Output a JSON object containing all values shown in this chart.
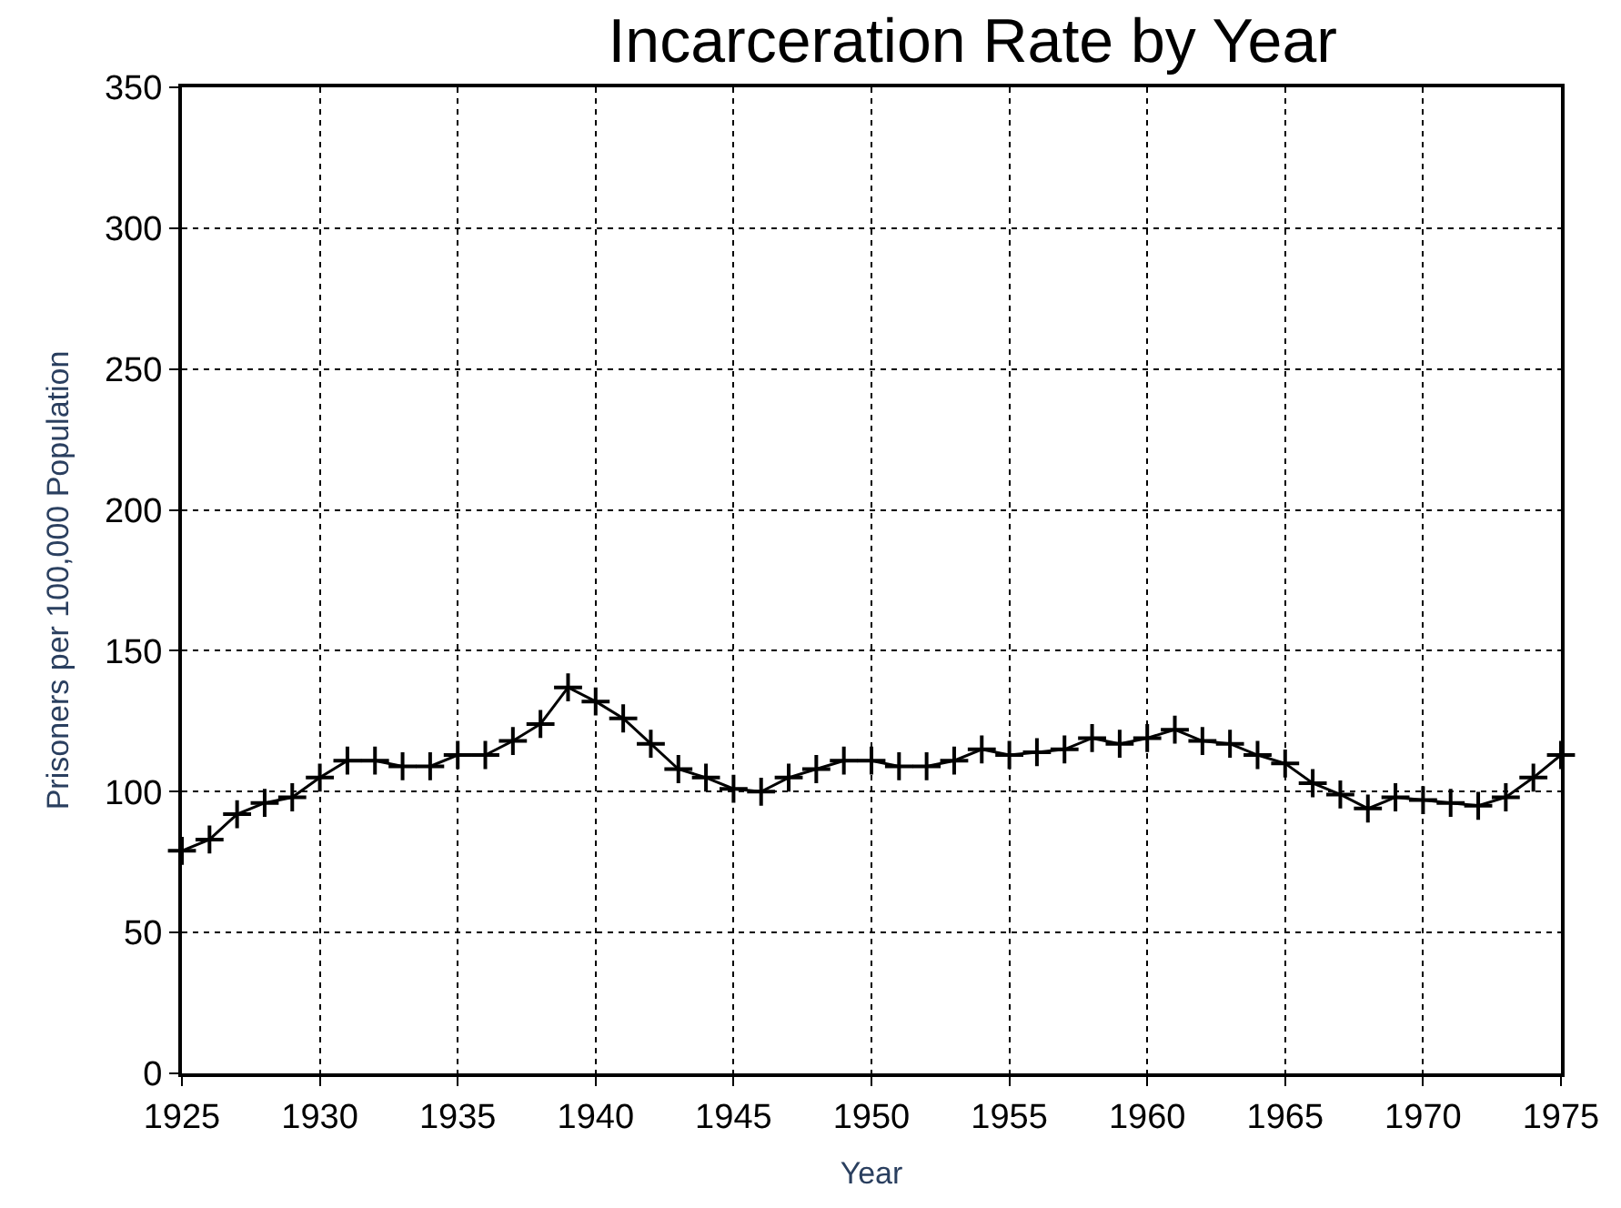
{
  "chart_data": {
    "type": "line",
    "title": "Incarceration Rate by Year",
    "xlabel": "Year",
    "ylabel": "Prisoners per 100,000 Population",
    "x": [
      1925,
      1926,
      1927,
      1928,
      1929,
      1930,
      1931,
      1932,
      1933,
      1934,
      1935,
      1936,
      1937,
      1938,
      1939,
      1940,
      1941,
      1942,
      1943,
      1944,
      1945,
      1946,
      1947,
      1948,
      1949,
      1950,
      1951,
      1952,
      1953,
      1954,
      1955,
      1956,
      1957,
      1958,
      1959,
      1960,
      1961,
      1962,
      1963,
      1964,
      1965,
      1966,
      1967,
      1968,
      1969,
      1970,
      1971,
      1972,
      1973,
      1974,
      1975
    ],
    "series": [
      {
        "color": "#000000",
        "values": [
          79,
          83,
          92,
          96,
          98,
          105,
          111,
          111,
          109,
          109,
          113,
          113,
          118,
          124,
          137,
          132,
          126,
          117,
          108,
          105,
          101,
          100,
          105,
          108,
          111,
          111,
          109,
          109,
          111,
          115,
          113,
          114,
          115,
          119,
          117,
          119,
          122,
          118,
          117,
          113,
          110,
          103,
          99,
          94,
          98,
          97,
          96,
          95,
          98,
          105,
          113
        ]
      }
    ],
    "xlim": [
      1925,
      1975
    ],
    "xticks": [
      1925,
      1930,
      1935,
      1940,
      1945,
      1950,
      1955,
      1960,
      1965,
      1970,
      1975
    ],
    "ylim": [
      0,
      350
    ],
    "yticks": [
      0,
      50,
      100,
      150,
      200,
      250,
      300,
      350
    ],
    "grid": true,
    "legend": false,
    "marker": "cross",
    "line_style": "solid"
  }
}
